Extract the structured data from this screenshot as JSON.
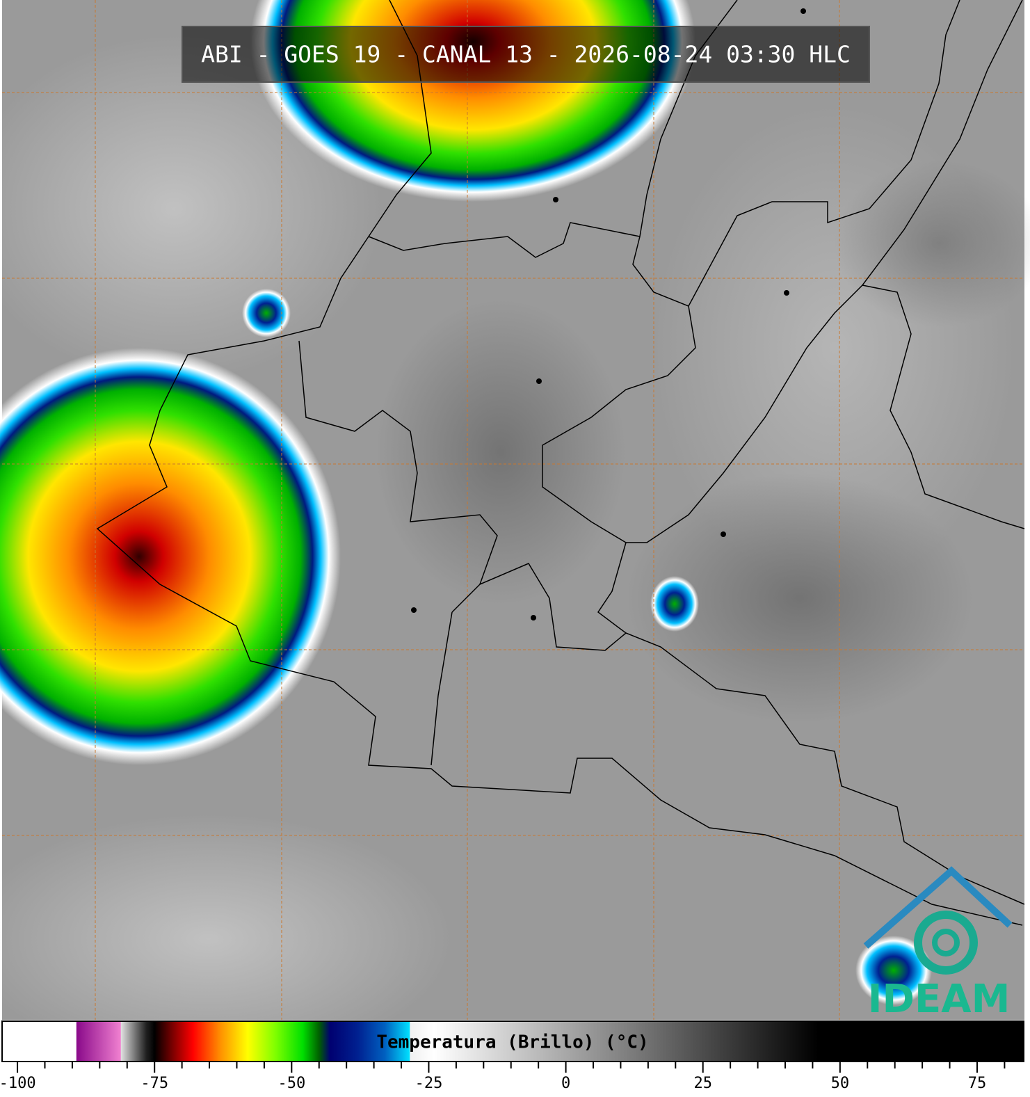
{
  "header": {
    "title": "ABI - GOES 19 - CANAL 13 - 2026-08-24 03:30 HLC"
  },
  "colorbar": {
    "label": "Temperatura (Brillo) (°C)",
    "xlim": [
      -102.8,
      83.5
    ],
    "ticks": [
      -100,
      -75,
      -50,
      -25,
      0,
      25,
      50,
      75
    ],
    "minor_ticks": [
      -95,
      -90,
      -85,
      -80,
      -70,
      -65,
      -60,
      -55,
      -45,
      -40,
      -35,
      -30,
      -20,
      -15,
      -10,
      -5,
      5,
      10,
      15,
      20,
      30,
      35,
      40,
      45,
      55,
      60,
      65,
      70,
      80
    ],
    "colorscale": [
      {
        "value": -102.8,
        "color": "#ffffff"
      },
      {
        "value": -89.3,
        "color": "#ffffff"
      },
      {
        "value": -89.2,
        "color": "#8a0a8a"
      },
      {
        "value": -81.2,
        "color": "#f080d0"
      },
      {
        "value": -81.1,
        "color": "#e0e0e0"
      },
      {
        "value": -76.5,
        "color": "#202020"
      },
      {
        "value": -75,
        "color": "#000000"
      },
      {
        "value": -72,
        "color": "#700000"
      },
      {
        "value": -68,
        "color": "#ff0000"
      },
      {
        "value": -63,
        "color": "#ff9000"
      },
      {
        "value": -58,
        "color": "#ffff00"
      },
      {
        "value": -53,
        "color": "#80ff00"
      },
      {
        "value": -48,
        "color": "#00e000"
      },
      {
        "value": -45,
        "color": "#006000"
      },
      {
        "value": -43,
        "color": "#000070"
      },
      {
        "value": -38,
        "color": "#002090"
      },
      {
        "value": -33,
        "color": "#0060c0"
      },
      {
        "value": -28.5,
        "color": "#00e0ff"
      },
      {
        "value": -28.4,
        "color": "#f0f0f0"
      },
      {
        "value": -24,
        "color": "#ffffff"
      },
      {
        "value": 46,
        "color": "#000000"
      },
      {
        "value": 83.5,
        "color": "#000000"
      }
    ]
  },
  "logo": {
    "text": "IDEAM"
  }
}
